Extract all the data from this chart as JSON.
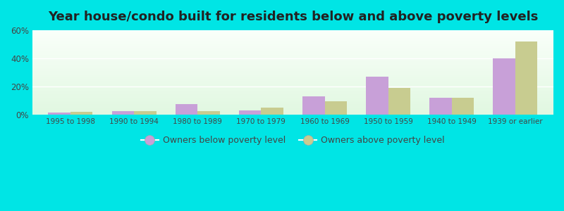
{
  "title": "Year house/condo built for residents below and above poverty levels",
  "categories": [
    "1995 to 1998",
    "1990 to 1994",
    "1980 to 1989",
    "1970 to 1979",
    "1960 to 1969",
    "1950 to 1959",
    "1940 to 1949",
    "1939 or earlier"
  ],
  "below_poverty": [
    1.5,
    2.5,
    7.5,
    3.0,
    13.0,
    27.0,
    12.0,
    40.0
  ],
  "above_poverty": [
    2.0,
    2.5,
    2.5,
    5.0,
    9.5,
    19.0,
    12.0,
    52.0
  ],
  "below_color": "#c8a0d8",
  "above_color": "#c8cc90",
  "ylim": [
    0,
    60
  ],
  "yticks": [
    0,
    20,
    40,
    60
  ],
  "ytick_labels": [
    "0%",
    "20%",
    "40%",
    "60%"
  ],
  "outer_background": "#00e5e5",
  "bar_width": 0.35,
  "legend_below_label": "Owners below poverty level",
  "legend_above_label": "Owners above poverty level"
}
